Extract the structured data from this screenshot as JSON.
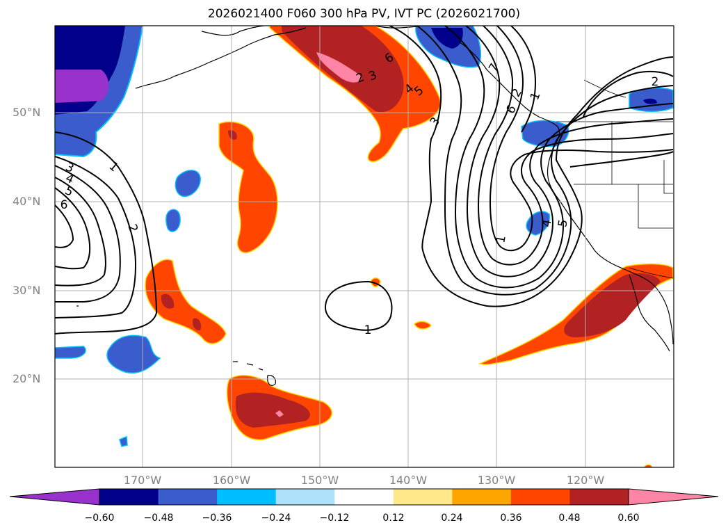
{
  "title": "2026021400 F060 300 hPa PV, IVT PC (2026021700)",
  "lat_labels": [
    "50°N",
    "40°N",
    "30°N",
    "20°N"
  ],
  "lon_labels": [
    "170°W",
    "160°W",
    "150°W",
    "140°W",
    "130°W",
    "120°W"
  ],
  "colorbar": {
    "ticks": [
      "−0.60",
      "−0.48",
      "−0.36",
      "−0.24",
      "−0.12",
      "0.12",
      "0.24",
      "0.36",
      "0.48",
      "0.60"
    ],
    "colors": [
      "#9932cc",
      "#00008b",
      "#3a5ccc",
      "#00bfff",
      "#aee2fa",
      "#ffffff",
      "#ffe98a",
      "#ffa500",
      "#ff4500",
      "#b22222",
      "#ff85a6"
    ]
  },
  "contour_labels": [
    "1",
    "2",
    "3",
    "4",
    "5",
    "6",
    "1",
    "2",
    "3",
    "4",
    "5",
    "6",
    "1",
    "2",
    "3",
    "4",
    "5",
    "6",
    "7",
    "2",
    "1"
  ]
}
